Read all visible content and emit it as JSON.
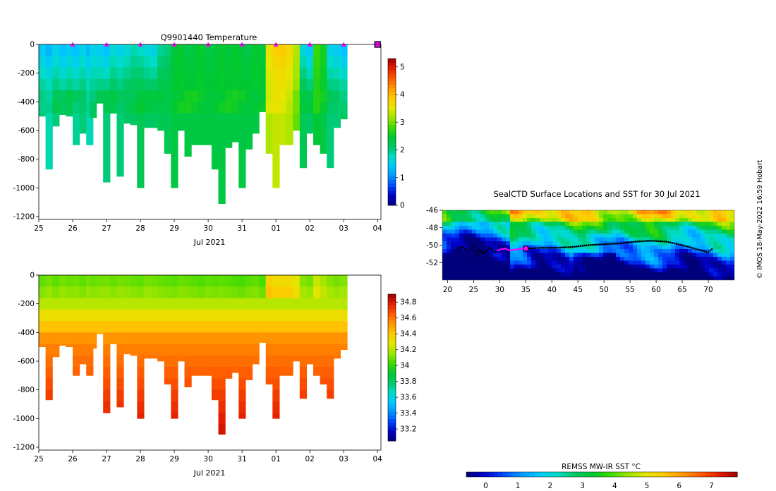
{
  "colors": {
    "temp_scale": [
      "#00007a",
      "#0000c8",
      "#0046ff",
      "#0096ff",
      "#00c8ff",
      "#00dcc8",
      "#00c864",
      "#00c832",
      "#40dc00",
      "#a0e600",
      "#e6e600",
      "#ffc800",
      "#ff9600",
      "#ff5a00",
      "#e61e00",
      "#a00000"
    ],
    "marker": "#ff00ff"
  },
  "credit": "© IMOS 18-May-2022 16:59 Hobart",
  "chart_data": [
    {
      "type": "heatmap",
      "title": "Q9901440  Temperature",
      "xlabel": "Jul 2021",
      "ylabel": "",
      "x_ticks": [
        "25",
        "26",
        "27",
        "28",
        "29",
        "30",
        "31",
        "01",
        "02",
        "03",
        "04"
      ],
      "x_range_days": [
        25,
        35.1
      ],
      "y_ticks": [
        0,
        -200,
        -400,
        -600,
        -800,
        -1000,
        -1200
      ],
      "ylim": [
        -1220,
        0
      ],
      "colorbar": {
        "min": 0,
        "max": 5.3,
        "ticks": [
          0,
          1,
          2,
          3,
          4,
          5
        ],
        "tick_labels": [
          "0",
          "1",
          "2",
          "3",
          "4",
          "5"
        ]
      },
      "surface_markers_days": [
        26,
        27,
        28,
        29,
        30,
        31,
        32,
        33,
        34
      ],
      "current_marker_day": 35,
      "profile_days": [
        25.1,
        25.3,
        25.5,
        25.7,
        25.9,
        26.1,
        26.3,
        26.5,
        26.6,
        26.8,
        27.0,
        27.2,
        27.4,
        27.6,
        27.8,
        28.0,
        28.2,
        28.4,
        28.6,
        28.8,
        29.0,
        29.2,
        29.4,
        29.6,
        29.8,
        30.0,
        30.2,
        30.4,
        30.6,
        30.8,
        31.0,
        31.2,
        31.4,
        31.6,
        31.8,
        32.0,
        32.2,
        32.4,
        32.6,
        32.8,
        33.0,
        33.2,
        33.4,
        33.6,
        33.8,
        34.0
      ],
      "max_depth_m": [
        500,
        870,
        570,
        490,
        500,
        700,
        620,
        700,
        510,
        410,
        960,
        480,
        920,
        550,
        560,
        1000,
        580,
        580,
        600,
        760,
        1000,
        600,
        780,
        700,
        700,
        700,
        870,
        1110,
        720,
        680,
        1000,
        730,
        620,
        470,
        760,
        1000,
        700,
        700,
        600,
        860,
        620,
        700,
        760,
        860,
        580,
        520
      ],
      "surface_temp_C": [
        1.4,
        1.2,
        1.5,
        1.3,
        1.4,
        1.3,
        1.5,
        1.2,
        1.5,
        1.4,
        1.3,
        1.6,
        1.5,
        1.6,
        1.8,
        1.7,
        1.6,
        1.5,
        1.9,
        2.0,
        2.4,
        2.5,
        2.3,
        2.4,
        2.5,
        2.3,
        2.4,
        2.5,
        2.4,
        2.5,
        2.4,
        2.3,
        2.5,
        2.4,
        3.6,
        3.8,
        3.9,
        3.7,
        3.3,
        1.6,
        1.3,
        2.8,
        2.6,
        1.5,
        1.4,
        1.3
      ],
      "mid_temp_C": [
        2.1,
        2.0,
        2.2,
        2.1,
        2.2,
        2.1,
        2.2,
        2.0,
        2.1,
        2.2,
        2.2,
        2.3,
        2.2,
        2.3,
        2.3,
        2.4,
        2.3,
        2.3,
        2.4,
        2.4,
        2.5,
        2.5,
        2.5,
        2.5,
        2.5,
        2.5,
        2.5,
        2.5,
        2.5,
        2.5,
        2.5,
        2.5,
        2.5,
        2.5,
        3.4,
        3.5,
        3.5,
        3.4,
        3.1,
        2.4,
        2.3,
        2.6,
        2.5,
        2.2,
        2.2,
        2.1
      ]
    },
    {
      "type": "heatmap",
      "title": "",
      "xlabel": "Jul 2021",
      "ylabel": "",
      "x_ticks": [
        "25",
        "26",
        "27",
        "28",
        "29",
        "30",
        "31",
        "01",
        "02",
        "03",
        "04"
      ],
      "x_range_days": [
        25,
        35.1
      ],
      "y_ticks": [
        0,
        -200,
        -400,
        -600,
        -800,
        -1000,
        -1200
      ],
      "ylim": [
        -1220,
        0
      ],
      "colorbar": {
        "min": 33.05,
        "max": 34.9,
        "ticks": [
          33.2,
          33.4,
          33.6,
          33.8,
          34,
          34.2,
          34.4,
          34.6,
          34.8
        ],
        "tick_labels": [
          "33.2",
          "33.4",
          "33.6",
          "33.8",
          "34",
          "34.2",
          "34.4",
          "34.6",
          "34.8"
        ]
      },
      "profile_days": [
        25.1,
        25.3,
        25.5,
        25.7,
        25.9,
        26.1,
        26.3,
        26.5,
        26.6,
        26.8,
        27.0,
        27.2,
        27.4,
        27.6,
        27.8,
        28.0,
        28.2,
        28.4,
        28.6,
        28.8,
        29.0,
        29.2,
        29.4,
        29.6,
        29.8,
        30.0,
        30.2,
        30.4,
        30.6,
        30.8,
        31.0,
        31.2,
        31.4,
        31.6,
        31.8,
        32.0,
        32.2,
        32.4,
        32.6,
        32.8,
        33.0,
        33.2,
        33.4,
        33.6,
        33.8,
        34.0
      ],
      "max_depth_m": [
        500,
        870,
        570,
        490,
        500,
        700,
        620,
        700,
        510,
        410,
        960,
        480,
        920,
        550,
        560,
        1000,
        580,
        580,
        600,
        760,
        1000,
        600,
        780,
        700,
        700,
        700,
        870,
        1110,
        720,
        680,
        1000,
        730,
        620,
        470,
        760,
        1000,
        700,
        700,
        600,
        860,
        620,
        700,
        760,
        860,
        580,
        520
      ],
      "surface_sal": [
        34.05,
        34.08,
        34.05,
        34.08,
        34.06,
        34.07,
        34.05,
        34.08,
        34.06,
        34.07,
        34.08,
        34.06,
        34.08,
        34.07,
        34.06,
        34.05,
        34.08,
        34.07,
        34.06,
        34.05,
        34.04,
        34.06,
        34.05,
        34.04,
        34.03,
        34.05,
        34.04,
        34.05,
        34.04,
        34.03,
        34.02,
        34.04,
        34.05,
        34.02,
        34.35,
        34.3,
        34.32,
        34.3,
        34.25,
        34.1,
        34.08,
        34.2,
        34.15,
        34.1,
        34.08,
        34.1
      ]
    },
    {
      "type": "map",
      "title": "SealCTD Surface Locations and SST for 30 Jul 2021",
      "x_ticks": [
        "20",
        "25",
        "30",
        "35",
        "40",
        "45",
        "50",
        "55",
        "60",
        "65",
        "70"
      ],
      "x_range_deg": [
        19,
        75
      ],
      "y_ticks": [
        "-46",
        "-48",
        "-50",
        "-52"
      ],
      "y_range_deg": [
        -54,
        -46
      ],
      "track_points": [
        [
          22,
          -50.4
        ],
        [
          23,
          -50.2
        ],
        [
          24,
          -50.8
        ],
        [
          25,
          -50.1
        ],
        [
          25.5,
          -51.2
        ],
        [
          26,
          -50.6
        ],
        [
          27,
          -50.9
        ],
        [
          28,
          -50.3
        ],
        [
          29,
          -50.8
        ],
        [
          30,
          -50.5
        ],
        [
          31,
          -50.4
        ],
        [
          32,
          -50.6
        ],
        [
          33,
          -50.5
        ],
        [
          34,
          -50.4
        ],
        [
          35,
          -50.4
        ],
        [
          38,
          -50.3
        ],
        [
          41,
          -50.3
        ],
        [
          44,
          -50.2
        ],
        [
          47,
          -50.0
        ],
        [
          50,
          -49.9
        ],
        [
          53,
          -49.8
        ],
        [
          56,
          -49.6
        ],
        [
          59,
          -49.5
        ],
        [
          62,
          -49.6
        ],
        [
          65,
          -50.0
        ],
        [
          68,
          -50.5
        ],
        [
          70,
          -50.8
        ],
        [
          71,
          -50.3
        ]
      ],
      "current_position": [
        35,
        -50.4
      ],
      "colorbar": {
        "title": "REMSS MW-IR SST °C",
        "min": -0.6,
        "max": 7.8,
        "ticks": [
          0,
          1,
          2,
          3,
          4,
          5,
          6,
          7
        ],
        "tick_labels": [
          "0",
          "1",
          "2",
          "3",
          "4",
          "5",
          "6",
          "7"
        ]
      }
    }
  ]
}
